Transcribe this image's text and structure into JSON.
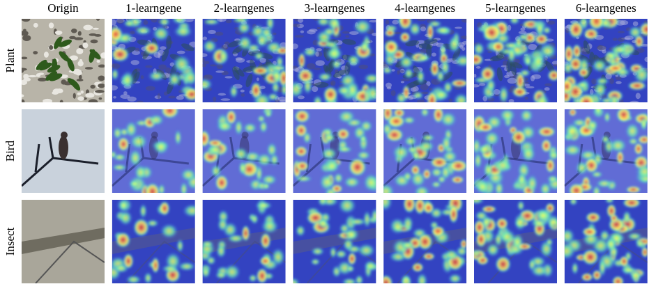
{
  "columns": [
    "Origin",
    "1-learngene",
    "2-learngenes",
    "3-learngenes",
    "4-learngenes",
    "5-learngenes",
    "6-learngenes"
  ],
  "rows": [
    "Plant",
    "Bird",
    "Insect"
  ]
}
